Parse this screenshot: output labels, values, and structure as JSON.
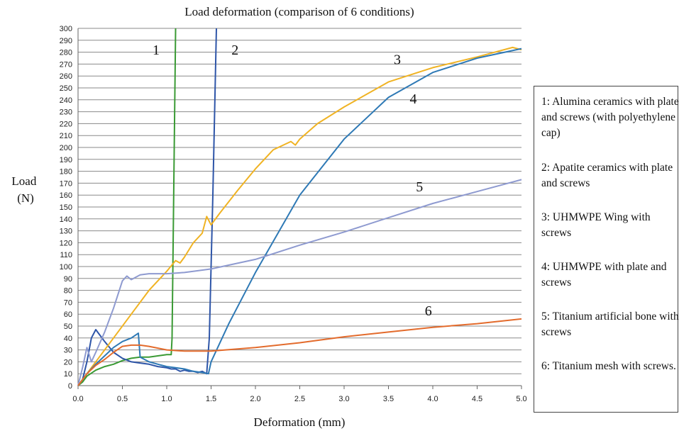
{
  "chart_data": {
    "type": "line",
    "title": "Load deformation (comparison of 6 conditions)",
    "xlabel": "Deformation (mm)",
    "ylabel": "Load\n(N)",
    "xlim": [
      0,
      5
    ],
    "ylim": [
      0,
      300
    ],
    "xticks": [
      "0.0",
      "0.5",
      "1.0",
      "1.5",
      "2.0",
      "2.5",
      "3.0",
      "3.5",
      "4.0",
      "4.5",
      "5.0"
    ],
    "yticks": [
      "0",
      "10",
      "20",
      "30",
      "40",
      "50",
      "60",
      "70",
      "80",
      "90",
      "100",
      "110",
      "120",
      "130",
      "140",
      "150",
      "160",
      "170",
      "180",
      "190",
      "200",
      "210",
      "220",
      "230",
      "240",
      "250",
      "260",
      "270",
      "280",
      "290",
      "300"
    ],
    "grid": "horizontal",
    "legend_entries": [
      "1: Alumina ceramics with plate and screws (with polyethylene cap)",
      "2: Apatite ceramics with plate and screws",
      "3: UHMWPE Wing with screws",
      "4: UHMWPE with plate and screws",
      "5: Titanium artificial bone with screws",
      "6: Titanium mesh with screws."
    ],
    "series": [
      {
        "name": "1",
        "color": "#3a9a34",
        "x": [
          0,
          0.05,
          0.1,
          0.2,
          0.3,
          0.4,
          0.5,
          0.6,
          0.7,
          0.8,
          0.9,
          1.0,
          1.05,
          1.06,
          1.1
        ],
        "y": [
          0,
          3,
          8,
          13,
          16,
          18,
          21,
          23,
          24,
          24,
          25,
          26,
          26,
          40,
          300
        ]
      },
      {
        "name": "2",
        "color": "#2e55a8",
        "x": [
          0,
          0.05,
          0.1,
          0.15,
          0.2,
          0.3,
          0.4,
          0.5,
          0.6,
          0.7,
          0.8,
          0.9,
          1.0,
          1.05,
          1.1,
          1.15,
          1.2,
          1.25,
          1.3,
          1.35,
          1.4,
          1.45,
          1.48,
          1.52,
          1.56
        ],
        "y": [
          0,
          5,
          20,
          40,
          47,
          37,
          28,
          23,
          20,
          19,
          18,
          16,
          15,
          14,
          14,
          12,
          13,
          12,
          12,
          11,
          12,
          10,
          40,
          160,
          300
        ]
      },
      {
        "name": "3",
        "color": "#f0b323",
        "x": [
          0,
          0.2,
          0.4,
          0.6,
          0.8,
          1.0,
          1.1,
          1.15,
          1.2,
          1.3,
          1.4,
          1.45,
          1.5,
          1.6,
          1.8,
          2.0,
          2.2,
          2.4,
          2.45,
          2.5,
          2.7,
          3.0,
          3.5,
          4.0,
          4.5,
          4.9,
          5.0
        ],
        "y": [
          0,
          20,
          40,
          60,
          80,
          96,
          105,
          103,
          108,
          120,
          128,
          142,
          135,
          145,
          164,
          182,
          198,
          205,
          202,
          207,
          220,
          234,
          255,
          267,
          276,
          284,
          282
        ]
      },
      {
        "name": "4",
        "color": "#2e79b5",
        "x": [
          0,
          0.1,
          0.2,
          0.3,
          0.4,
          0.5,
          0.6,
          0.68,
          0.7,
          0.8,
          0.9,
          1.0,
          1.1,
          1.2,
          1.3,
          1.4,
          1.47,
          1.5,
          1.7,
          2.0,
          2.5,
          3.0,
          3.5,
          4.0,
          4.5,
          5.0
        ],
        "y": [
          0,
          10,
          18,
          25,
          32,
          37,
          40,
          44,
          24,
          20,
          18,
          16,
          15,
          14,
          12,
          11,
          10,
          20,
          52,
          95,
          160,
          207,
          242,
          263,
          275,
          283
        ]
      },
      {
        "name": "5",
        "color": "#8e9ad0",
        "x": [
          0,
          0.05,
          0.1,
          0.15,
          0.2,
          0.3,
          0.4,
          0.5,
          0.55,
          0.6,
          0.7,
          0.8,
          1.0,
          1.2,
          1.5,
          2.0,
          2.5,
          3.0,
          3.5,
          4.0,
          4.5,
          5.0
        ],
        "y": [
          0,
          15,
          32,
          20,
          28,
          45,
          65,
          88,
          92,
          89,
          93,
          94,
          94,
          95,
          98,
          106,
          118,
          129,
          141,
          153,
          163,
          173
        ]
      },
      {
        "name": "6",
        "color": "#e36b2c",
        "x": [
          0,
          0.1,
          0.2,
          0.3,
          0.4,
          0.5,
          0.6,
          0.7,
          0.8,
          1.0,
          1.2,
          1.5,
          2.0,
          2.5,
          3.0,
          3.5,
          4.0,
          4.5,
          5.0
        ],
        "y": [
          0,
          10,
          17,
          22,
          28,
          33,
          34,
          34,
          33,
          30,
          29,
          29,
          32,
          36,
          41,
          45,
          49,
          52,
          56
        ]
      }
    ]
  }
}
